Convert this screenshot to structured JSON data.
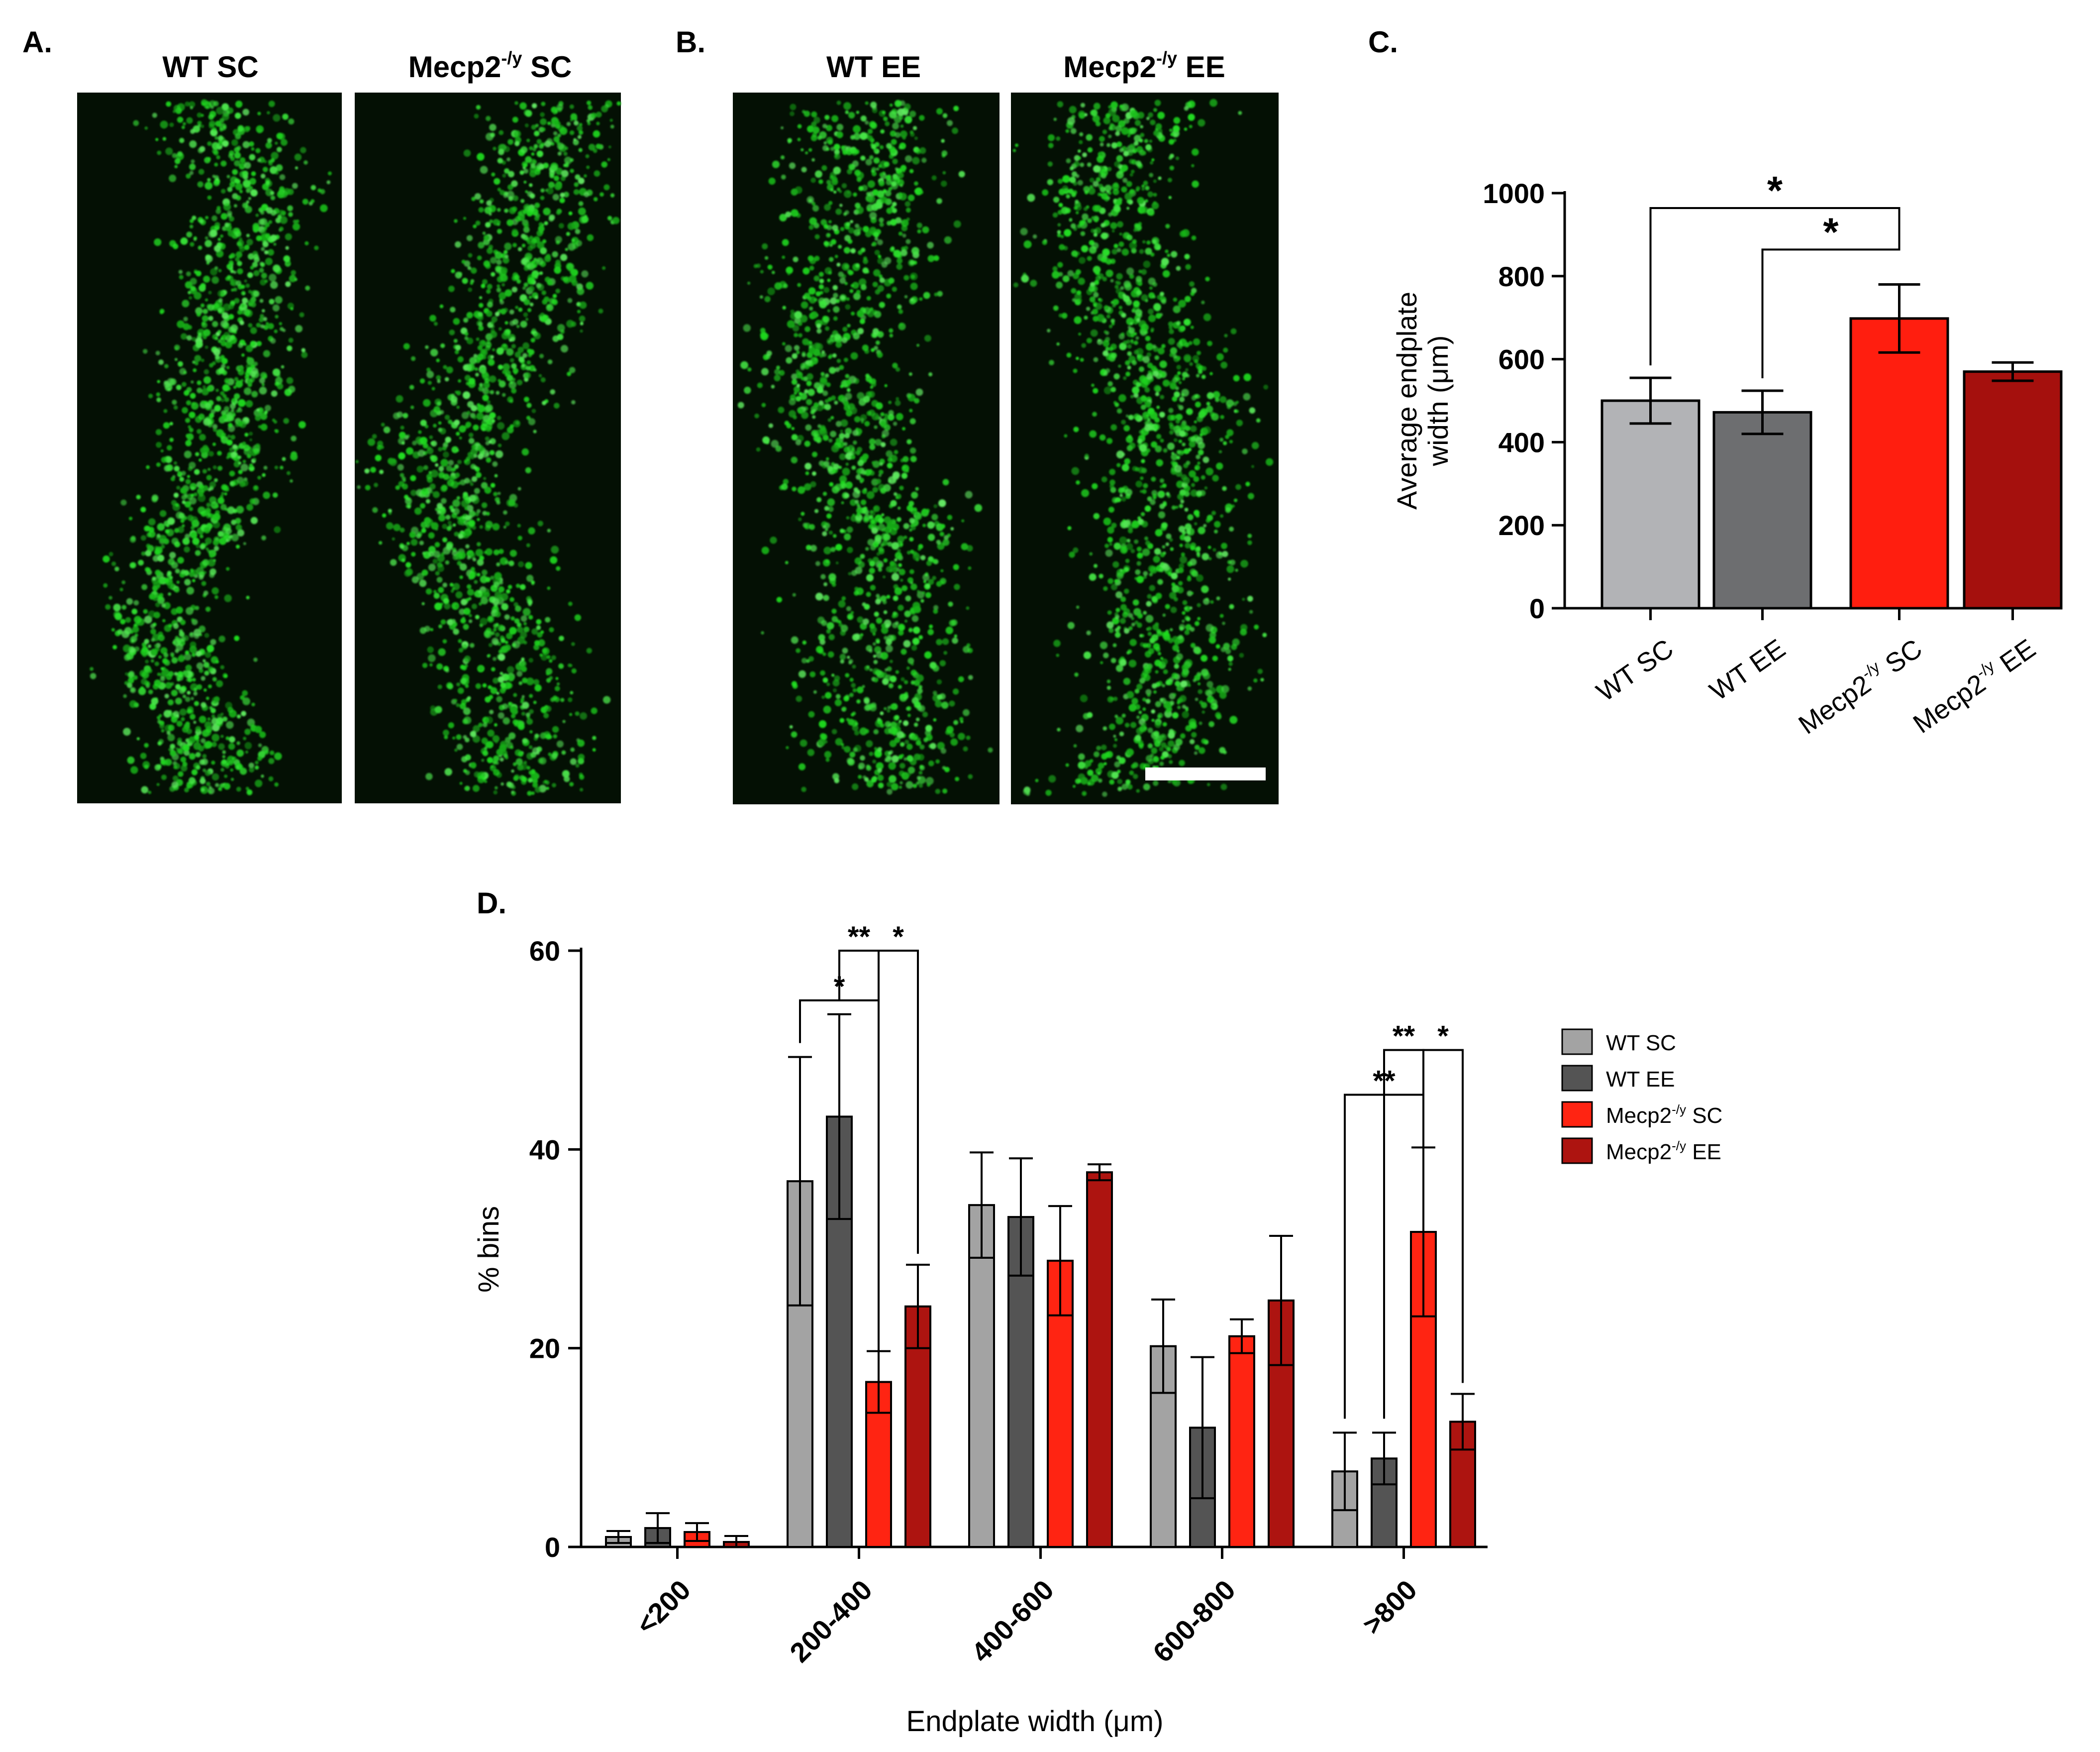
{
  "panels": {
    "A": {
      "label": "A.",
      "images": [
        {
          "title": "WT SC",
          "sup": ""
        },
        {
          "title": "Mecp2",
          "sup": "-/y",
          "suffix": " SC"
        }
      ]
    },
    "B": {
      "label": "B.",
      "images": [
        {
          "title": "WT EE",
          "sup": ""
        },
        {
          "title": "Mecp2",
          "sup": "-/y",
          "suffix": " EE"
        }
      ]
    },
    "C": {
      "label": "C."
    },
    "D": {
      "label": "D."
    }
  },
  "colors": {
    "wt_sc": "#b2b3b6",
    "wt_ee": "#6d6e70",
    "mecp2_sc": "#ff1e0f",
    "mecp2_ee": "#a5100d",
    "wt_sc_d": "#a3a3a3",
    "wt_ee_d": "#545454",
    "mecp2_sc_d": "#ff2412",
    "mecp2_ee_d": "#ad1410",
    "micrograph_bg": "#041004",
    "puncta": "#2fd12f"
  },
  "chart_data": [
    {
      "type": "bar",
      "panel": "C",
      "categories": [
        "WT SC",
        "WT EE",
        "Mecp2-/y SC",
        "Mecp2-/y EE"
      ],
      "category_parts": [
        {
          "main": "WT SC",
          "sup": "",
          "suffix": ""
        },
        {
          "main": "WT EE",
          "sup": "",
          "suffix": ""
        },
        {
          "main": "Mecp2",
          "sup": "-/y",
          "suffix": " SC"
        },
        {
          "main": "Mecp2",
          "sup": "-/y",
          "suffix": " EE"
        }
      ],
      "values": [
        500,
        472,
        698,
        570
      ],
      "errors": [
        55,
        52,
        82,
        22
      ],
      "ylabel_line1": "Average endplate",
      "ylabel_line2": "width (μm)",
      "ylim": [
        0,
        1000
      ],
      "yticks": [
        "0",
        "200",
        "400",
        "600",
        "800",
        "1000"
      ],
      "significance": [
        {
          "from": 0,
          "to": 2,
          "label": "*"
        },
        {
          "from": 1,
          "to": 2,
          "label": "*"
        }
      ]
    },
    {
      "type": "bar",
      "panel": "D",
      "categories": [
        "<200",
        "200-400",
        "400-600",
        "600-800",
        ">800"
      ],
      "series": [
        {
          "name": "WT SC",
          "values": [
            1.0,
            36.8,
            34.4,
            20.2,
            7.6
          ],
          "errors": [
            0.6,
            12.5,
            5.3,
            4.7,
            3.9
          ]
        },
        {
          "name": "WT EE",
          "values": [
            1.9,
            43.3,
            33.2,
            12.0,
            8.9
          ],
          "errors": [
            1.5,
            10.3,
            5.9,
            7.1,
            2.6
          ]
        },
        {
          "name": "Mecp2-/y SC",
          "values": [
            1.5,
            16.6,
            28.8,
            21.2,
            31.7
          ],
          "errors": [
            0.9,
            3.1,
            5.5,
            1.7,
            8.5
          ]
        },
        {
          "name": "Mecp2-/y EE",
          "values": [
            0.5,
            24.2,
            37.7,
            24.8,
            12.6
          ],
          "errors": [
            0.6,
            4.2,
            0.8,
            6.5,
            2.8
          ]
        }
      ],
      "legend": [
        {
          "main": "WT SC",
          "sup": "",
          "suffix": ""
        },
        {
          "main": "WT EE",
          "sup": "",
          "suffix": ""
        },
        {
          "main": "Mecp2",
          "sup": "-/y",
          "suffix": " SC"
        },
        {
          "main": "Mecp2",
          "sup": "-/y",
          "suffix": " EE"
        }
      ],
      "legend_placement": "right",
      "xlabel": "Endplate width (μm)",
      "ylabel": "% bins",
      "ylim": [
        0,
        60
      ],
      "yticks": [
        "0",
        "20",
        "40",
        "60"
      ],
      "significance": [
        {
          "category": 1,
          "from": 0,
          "to": 2,
          "label": "*"
        },
        {
          "category": 1,
          "from": 1,
          "to": 2,
          "label": "**"
        },
        {
          "category": 1,
          "from": 2,
          "to": 3,
          "label": "*"
        },
        {
          "category": 4,
          "from": 0,
          "to": 2,
          "label": "**"
        },
        {
          "category": 4,
          "from": 1,
          "to": 2,
          "label": "**"
        },
        {
          "category": 4,
          "from": 2,
          "to": 3,
          "label": "*"
        }
      ]
    }
  ]
}
